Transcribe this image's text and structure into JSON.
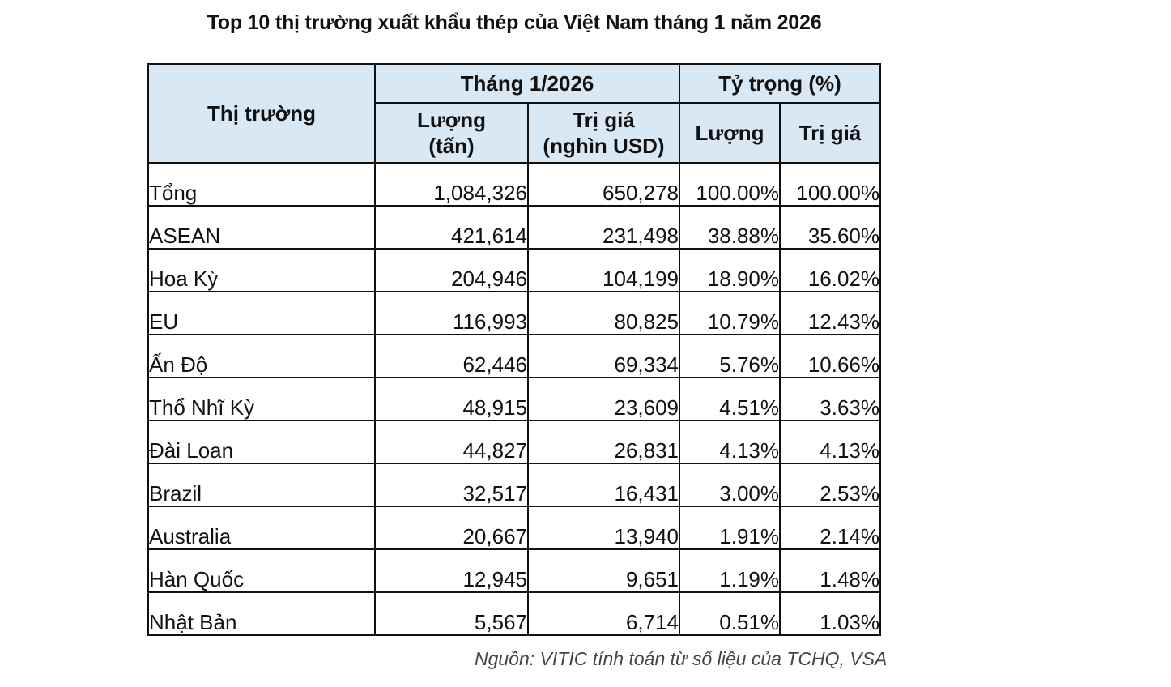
{
  "chart_data": {
    "type": "table",
    "title": "Top 10 thị trường xuất khẩu thép của Việt Nam tháng 1 năm 2026",
    "headers": {
      "market": "Thị trường",
      "group_month": "Tháng 1/2026",
      "group_share": "Tỷ trọng (%)",
      "volume_line1": "Lượng",
      "volume_line2": "(tấn)",
      "value_line1": "Trị giá",
      "value_line2": "(nghìn USD)",
      "share_volume": "Lượng",
      "share_value": "Trị giá"
    },
    "rows": [
      {
        "market": "Tổng",
        "volume": "1,084,326",
        "value": "650,278",
        "share_volume": "100.00%",
        "share_value": "100.00%"
      },
      {
        "market": "ASEAN",
        "volume": "421,614",
        "value": "231,498",
        "share_volume": "38.88%",
        "share_value": "35.60%"
      },
      {
        "market": "Hoa Kỳ",
        "volume": "204,946",
        "value": "104,199",
        "share_volume": "18.90%",
        "share_value": "16.02%"
      },
      {
        "market": "EU",
        "volume": "116,993",
        "value": "80,825",
        "share_volume": "10.79%",
        "share_value": "12.43%"
      },
      {
        "market": "Ấn Độ",
        "volume": "62,446",
        "value": "69,334",
        "share_volume": "5.76%",
        "share_value": "10.66%"
      },
      {
        "market": "Thổ Nhĩ Kỳ",
        "volume": "48,915",
        "value": "23,609",
        "share_volume": "4.51%",
        "share_value": "3.63%"
      },
      {
        "market": "Đài Loan",
        "volume": "44,827",
        "value": "26,831",
        "share_volume": "4.13%",
        "share_value": "4.13%"
      },
      {
        "market": "Brazil",
        "volume": "32,517",
        "value": "16,431",
        "share_volume": "3.00%",
        "share_value": "2.53%"
      },
      {
        "market": "Australia",
        "volume": "20,667",
        "value": "13,940",
        "share_volume": "1.91%",
        "share_value": "2.14%"
      },
      {
        "market": "Hàn Quốc",
        "volume": "12,945",
        "value": "9,651",
        "share_volume": "1.19%",
        "share_value": "1.48%"
      },
      {
        "market": "Nhật Bản",
        "volume": "5,567",
        "value": "6,714",
        "share_volume": "0.51%",
        "share_value": "1.03%"
      }
    ],
    "source": "Nguồn: VITIC tính toán từ số liệu của TCHQ, VSA",
    "colors": {
      "header_fill": "#d9e8f5",
      "border": "#111111"
    }
  }
}
